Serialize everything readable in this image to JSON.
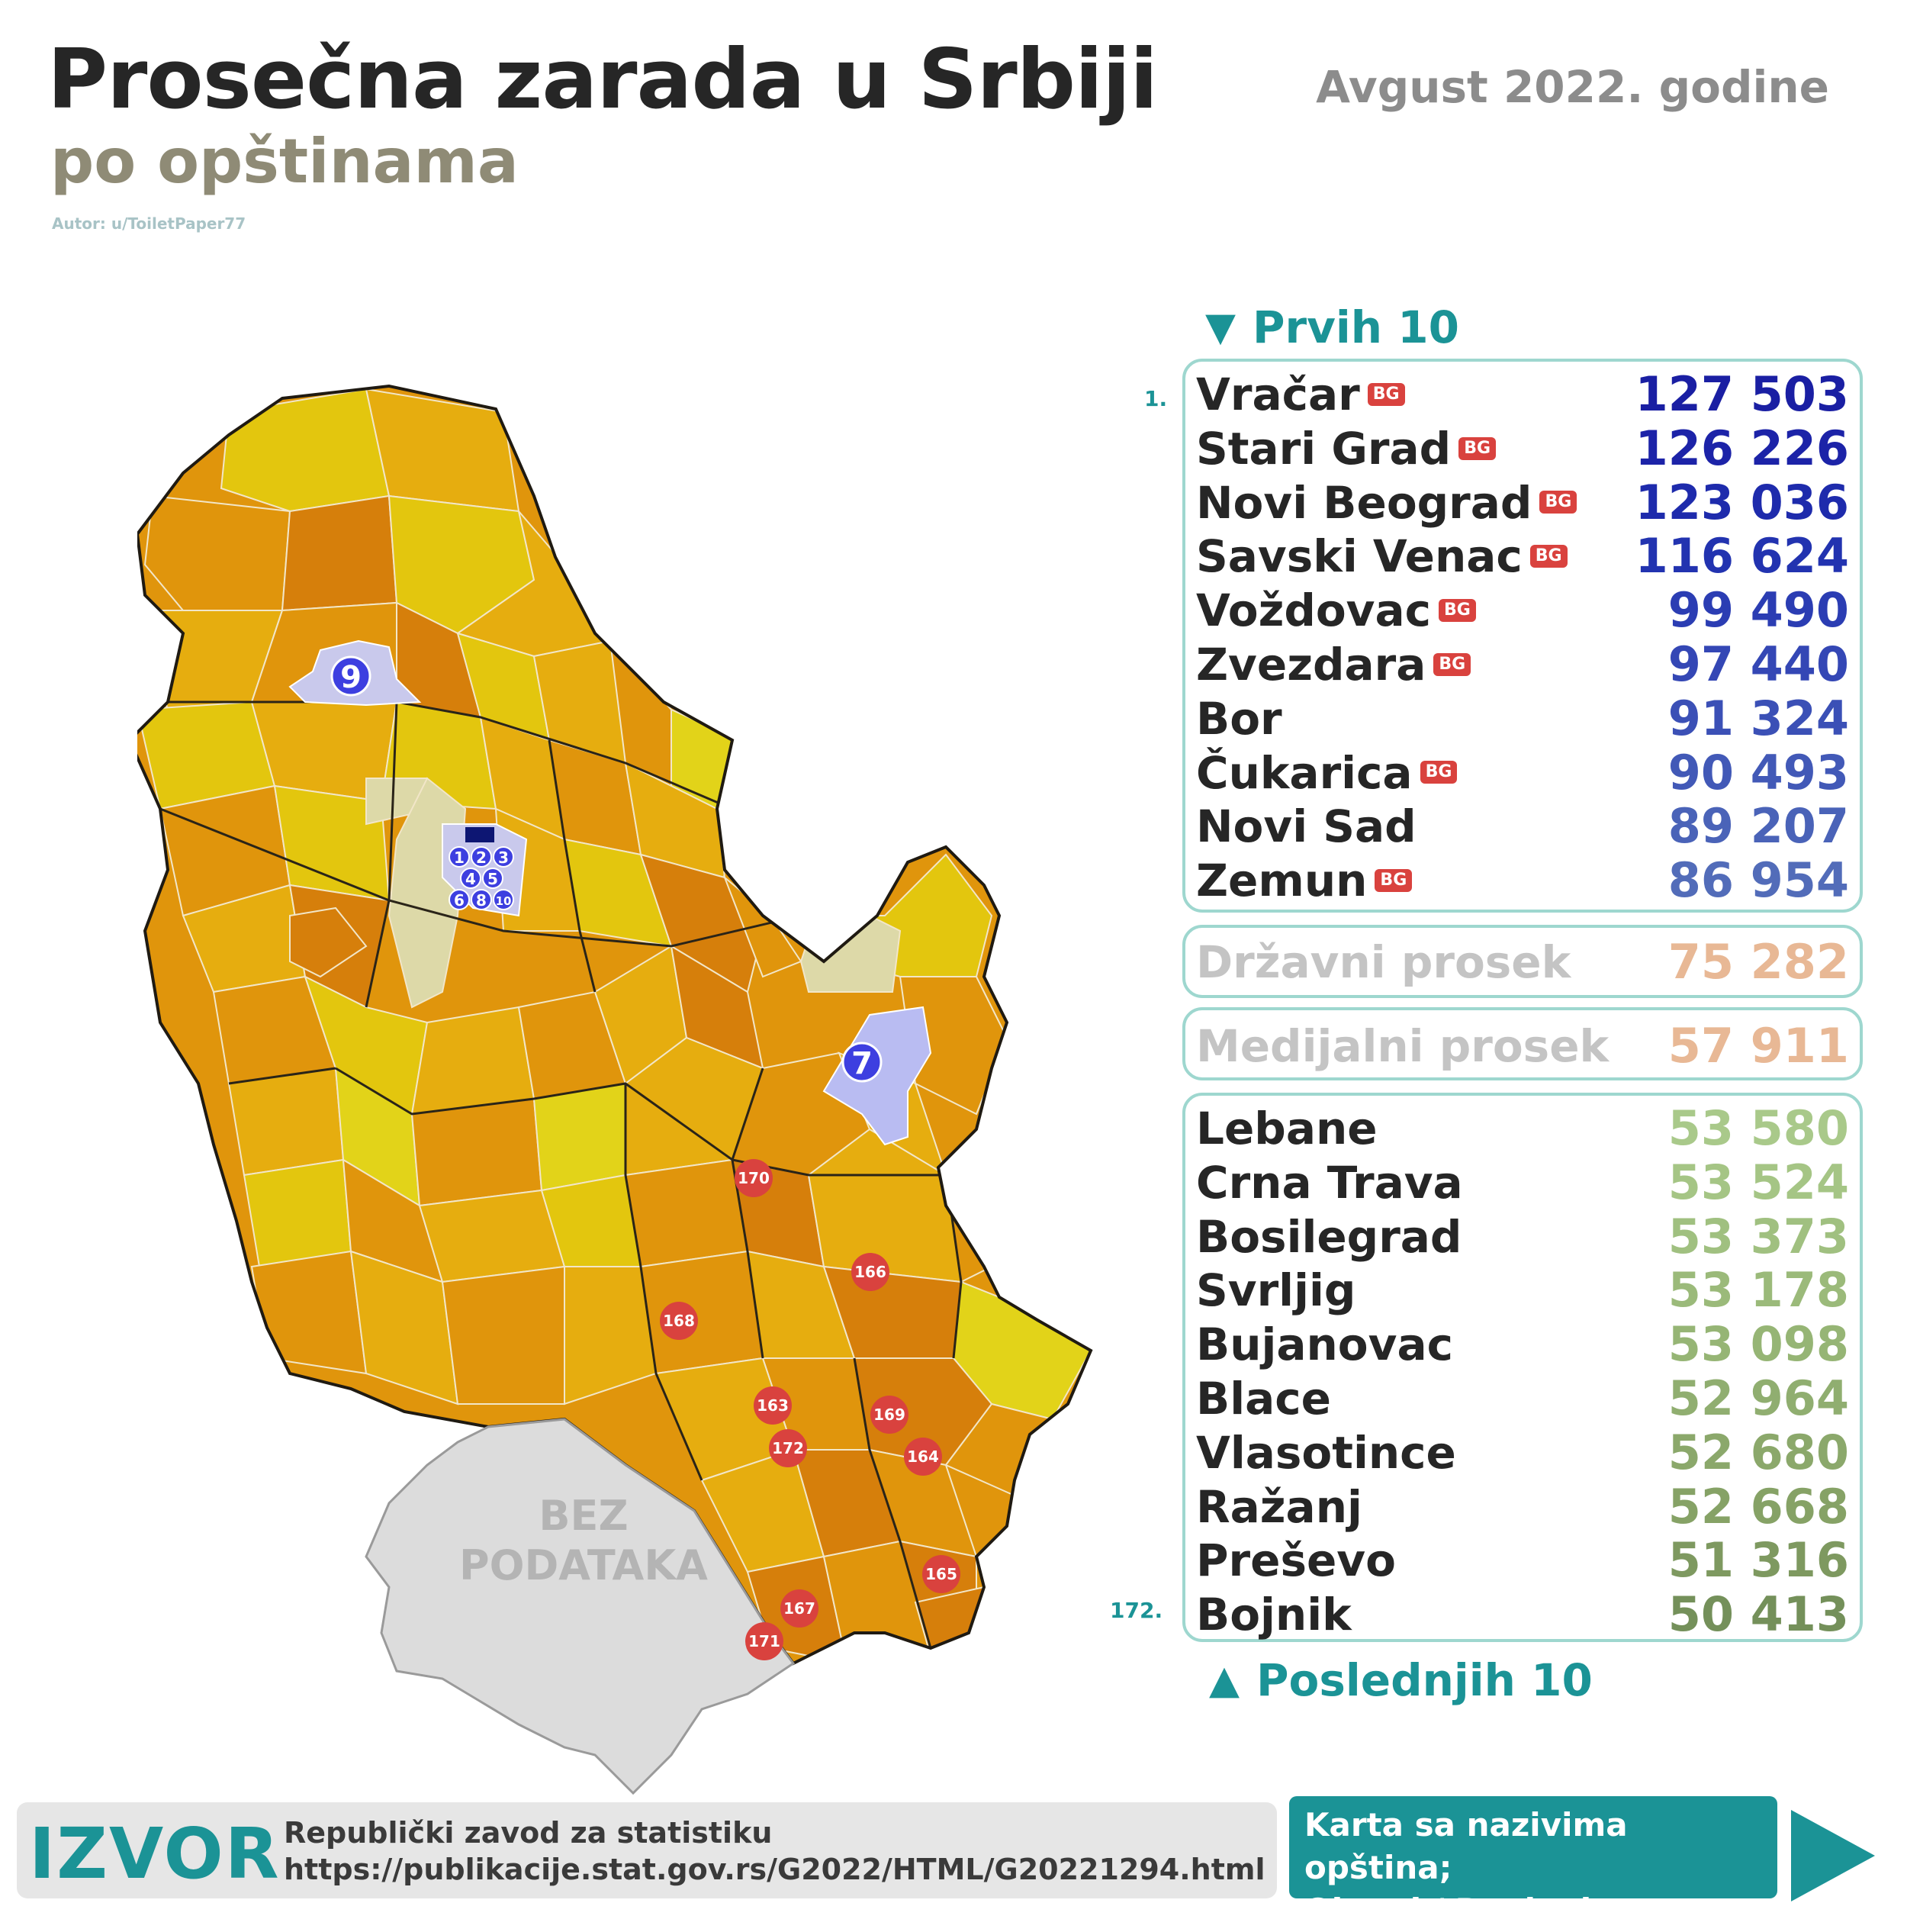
{
  "header": {
    "title": "Prosečna zarada u Srbiji",
    "subtitle": "po opštinama",
    "author": "Autor: u/ToiletPaper77",
    "date": "Avgust 2022. godine"
  },
  "map": {
    "no_data_line1": "BEZ",
    "no_data_line2": "PODATAKA",
    "top_markers": [
      "1",
      "2",
      "3",
      "4",
      "5",
      "6",
      "8",
      "10",
      "7",
      "9"
    ],
    "bottom_markers": [
      "170",
      "166",
      "168",
      "163",
      "169",
      "172",
      "164",
      "167",
      "165",
      "171"
    ],
    "colors": {
      "dark_orange": "#d67f0b",
      "orange": "#e0950c",
      "gold": "#e6ad0f",
      "yellow": "#e3c60e",
      "light_yellow": "#e2d319",
      "beige": "#ddd9a8",
      "lavender": "#c9c9ec",
      "blue_marker": "#3d3fe0",
      "red_marker": "#d9423e",
      "no_data": "#dcdcdc"
    }
  },
  "top10": {
    "heading": "Prvih 10",
    "first_rank": "1.",
    "bg_tag": "BG",
    "rows": [
      {
        "name": "Vračar",
        "bg": true,
        "value": "127 503",
        "color": "#1a1fa3"
      },
      {
        "name": "Stari Grad",
        "bg": true,
        "value": "126 226",
        "color": "#1c23a8"
      },
      {
        "name": "Novi Beograd",
        "bg": true,
        "value": "123 036",
        "color": "#1e2bac"
      },
      {
        "name": "Savski Venac",
        "bg": true,
        "value": "116 624",
        "color": "#2233b0"
      },
      {
        "name": "Voždovac",
        "bg": true,
        "value": "99 490",
        "color": "#2b3db3"
      },
      {
        "name": "Zvezdara",
        "bg": true,
        "value": "97 440",
        "color": "#3447b5"
      },
      {
        "name": "Bor",
        "bg": false,
        "value": "91 324",
        "color": "#3b50b6"
      },
      {
        "name": "Čukarica",
        "bg": true,
        "value": "90 493",
        "color": "#4259b7"
      },
      {
        "name": "Novi Sad",
        "bg": false,
        "value": "89 207",
        "color": "#4a63b8"
      },
      {
        "name": "Zemun",
        "bg": true,
        "value": "86 954",
        "color": "#526cb9"
      }
    ]
  },
  "average": {
    "label": "Državni prosek",
    "value": "75 282"
  },
  "median": {
    "label": "Medijalni prosek",
    "value": "57 911"
  },
  "bottom10": {
    "heading": "Poslednjih 10",
    "last_rank": "172.",
    "rows": [
      {
        "name": "Lebane",
        "value": "53 580",
        "color": "#a9c98a"
      },
      {
        "name": "Crna Trava",
        "value": "53 524",
        "color": "#a5c585"
      },
      {
        "name": "Bosilegrad",
        "value": "53 373",
        "color": "#a0c080"
      },
      {
        "name": "Svrljig",
        "value": "53 178",
        "color": "#9bba7a"
      },
      {
        "name": "Bujanovac",
        "value": "53 098",
        "color": "#96b575"
      },
      {
        "name": "Blace",
        "value": "52 964",
        "color": "#90ae70"
      },
      {
        "name": "Vlasotince",
        "value": "52 680",
        "color": "#8ba86b"
      },
      {
        "name": "Ražanj",
        "value": "52 668",
        "color": "#86a266"
      },
      {
        "name": "Preševo",
        "value": "51 316",
        "color": "#7e9960"
      },
      {
        "name": "Bojnik",
        "value": "50 413",
        "color": "#74905a"
      }
    ]
  },
  "source": {
    "label": "IZVOR",
    "line1": "Republički zavod za statistiku",
    "line2": "https://publikacije.stat.gov.rs/G2022/HTML/G20221294.html",
    "link_line1": "Karta sa nazivima opština;",
    "link_line2": "Okruzi / Regioni"
  }
}
